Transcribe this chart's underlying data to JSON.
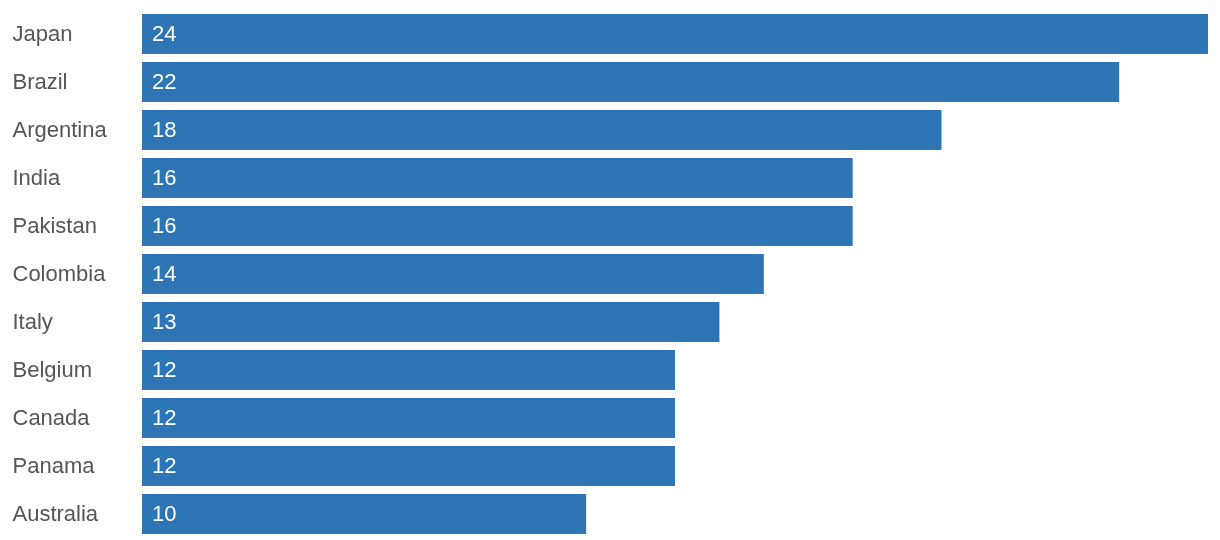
{
  "chart_data": {
    "type": "bar",
    "orientation": "horizontal",
    "categories": [
      "Japan",
      "Brazil",
      "Argentina",
      "India",
      "Pakistan",
      "Colombia",
      "Italy",
      "Belgium",
      "Canada",
      "Panama",
      "Australia"
    ],
    "values": [
      24,
      22,
      18,
      16,
      16,
      14,
      13,
      12,
      12,
      12,
      10
    ],
    "color": "#2e75b6",
    "data_labels": true
  }
}
